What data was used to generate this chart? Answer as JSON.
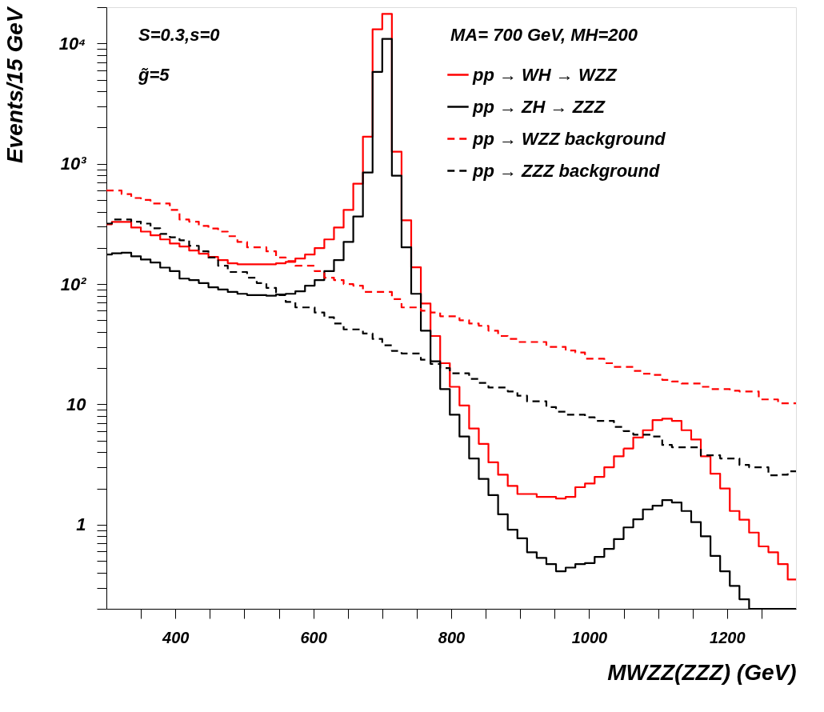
{
  "chart_data": {
    "type": "histogram",
    "xlabel": "MWZZ(ZZZ) (GeV)",
    "ylabel": "Events/15 GeV",
    "annotations": [
      "S=0.3,s=0",
      "g̃=5",
      "MA= 700 GeV, MH=200"
    ],
    "bins": [
      300,
      308,
      322,
      336,
      350,
      364,
      378,
      392,
      406,
      420,
      434,
      448,
      462,
      476,
      490,
      504,
      518,
      532,
      546,
      560,
      574,
      588,
      602,
      616,
      630,
      644,
      658,
      672,
      686,
      700,
      714,
      728,
      742,
      756,
      770,
      784,
      798,
      812,
      826,
      840,
      854,
      868,
      882,
      896,
      910,
      924,
      938,
      952,
      966,
      980,
      994,
      1008,
      1022,
      1036,
      1050,
      1064,
      1078,
      1092,
      1106,
      1120,
      1134,
      1148,
      1162,
      1176,
      1190,
      1204,
      1218,
      1232,
      1246,
      1260,
      1274,
      1288,
      1300
    ],
    "series": [
      {
        "name": "pp → WH → WZZ",
        "color": "#ff0000",
        "line_style": "solid",
        "values": [
          314,
          329,
          329,
          295,
          273,
          254,
          235,
          217,
          205,
          190,
          179,
          168,
          158,
          149,
          146,
          146,
          146,
          146,
          149,
          153,
          163,
          176,
          199,
          235,
          295,
          413,
          683,
          1680,
          13100,
          17600,
          1260,
          339,
          138,
          69,
          37,
          22,
          14,
          9.8,
          6.3,
          4.7,
          3.3,
          2.6,
          2.1,
          1.8,
          1.8,
          1.7,
          1.7,
          1.65,
          1.7,
          2.05,
          2.2,
          2.5,
          3.0,
          3.7,
          4.3,
          5.3,
          6.1,
          7.4,
          7.6,
          7.3,
          6.1,
          5.1,
          3.7,
          2.65,
          2.0,
          1.3,
          1.1,
          0.86,
          0.66,
          0.59,
          0.47,
          0.35
        ]
      },
      {
        "name": "pp → ZH → ZZZ",
        "color": "#000000",
        "line_style": "solid",
        "values": [
          176,
          180,
          182,
          170,
          160,
          151,
          137,
          128,
          111,
          108,
          102,
          94,
          90,
          86,
          83,
          81,
          81,
          80,
          82,
          83,
          87,
          97,
          108,
          128,
          158,
          224,
          364,
          845,
          5800,
          10900,
          795,
          202,
          83,
          41,
          22.8,
          13.4,
          8.2,
          5.4,
          3.55,
          2.4,
          1.76,
          1.22,
          0.91,
          0.77,
          0.59,
          0.53,
          0.47,
          0.41,
          0.44,
          0.47,
          0.48,
          0.54,
          0.63,
          0.76,
          0.95,
          1.11,
          1.34,
          1.44,
          1.6,
          1.53,
          1.3,
          1.05,
          0.8,
          0.55,
          0.41,
          0.31,
          0.24,
          0.2,
          0.2,
          0.2,
          0.2,
          0.2
        ]
      },
      {
        "name": "pp →  WZZ background",
        "color": "#ff0000",
        "line_style": "dashed",
        "values": [
          600,
          600,
          560,
          519,
          500,
          467,
          467,
          413,
          344,
          330,
          304,
          290,
          273,
          250,
          224,
          202,
          202,
          187,
          166,
          155,
          142,
          142,
          128,
          113,
          108,
          100,
          97,
          86,
          86,
          86,
          75,
          64,
          64,
          60,
          58,
          54,
          54,
          50,
          47,
          45,
          41,
          37,
          35,
          33,
          33,
          33,
          30,
          30,
          28,
          27,
          24,
          24,
          22,
          20.5,
          20.5,
          19,
          18,
          17.6,
          16,
          15.5,
          14.9,
          14.9,
          14,
          13.4,
          13.4,
          13,
          12.8,
          12.8,
          11,
          11,
          10.2,
          10.2
        ]
      },
      {
        "name": "pp →  ZZZ background",
        "color": "#000000",
        "line_style": "dashed",
        "values": [
          318,
          344,
          344,
          330,
          318,
          291,
          261,
          245,
          231,
          208,
          187,
          166,
          142,
          126,
          126,
          113,
          102,
          93,
          81,
          71,
          64,
          64,
          58,
          53,
          47,
          42,
          42,
          38.8,
          35,
          31,
          27.8,
          26.5,
          26.5,
          23.5,
          21.7,
          20,
          18.1,
          18.1,
          16.3,
          15.1,
          13.8,
          13.8,
          12.8,
          11.8,
          10.6,
          10.6,
          9.5,
          8.7,
          8.2,
          8.2,
          7.8,
          7.3,
          7.3,
          6.5,
          6.0,
          5.6,
          5.6,
          5.4,
          4.6,
          4.4,
          4.4,
          4.4,
          3.77,
          3.77,
          3.55,
          3.55,
          3.14,
          3.0,
          3.0,
          2.57,
          2.6,
          2.78
        ]
      }
    ],
    "xlim": [
      300,
      1300
    ],
    "xticks": [
      {
        "value": 350,
        "label": null
      },
      400,
      {
        "value": 450,
        "label": null
      },
      {
        "value": 500,
        "label": null
      },
      {
        "value": 550,
        "label": null
      },
      600,
      {
        "value": 650,
        "label": null
      },
      {
        "value": 700,
        "label": null
      },
      {
        "value": 750,
        "label": null
      },
      800,
      {
        "value": 850,
        "label": null
      },
      {
        "value": 900,
        "label": null
      },
      {
        "value": 950,
        "label": null
      },
      1000,
      {
        "value": 1050,
        "label": null
      },
      {
        "value": 1100,
        "label": null
      },
      {
        "value": 1150,
        "label": null
      },
      1200,
      {
        "value": 1250,
        "label": null
      }
    ],
    "ylim": [
      0.2,
      20000
    ],
    "yticks": [
      {
        "value": 0.2,
        "label": null
      },
      {
        "value": 0.3,
        "label": null
      },
      {
        "value": 0.4,
        "label": null
      },
      {
        "value": 0.5,
        "label": null
      },
      {
        "value": 0.6,
        "label": null
      },
      {
        "value": 0.7,
        "label": null
      },
      {
        "value": 0.8,
        "label": null
      },
      {
        "value": 0.9,
        "label": null
      },
      1,
      {
        "value": 2,
        "label": null
      },
      {
        "value": 3,
        "label": null
      },
      {
        "value": 4,
        "label": null
      },
      {
        "value": 5,
        "label": null
      },
      {
        "value": 6,
        "label": null
      },
      {
        "value": 7,
        "label": null
      },
      {
        "value": 8,
        "label": null
      },
      {
        "value": 9,
        "label": null
      },
      10,
      {
        "value": 20,
        "label": null
      },
      {
        "value": 30,
        "label": null
      },
      {
        "value": 40,
        "label": null
      },
      {
        "value": 50,
        "label": null
      },
      {
        "value": 60,
        "label": null
      },
      {
        "value": 70,
        "label": null
      },
      {
        "value": 80,
        "label": null
      },
      {
        "value": 90,
        "label": null
      },
      {
        "value": 100,
        "label": "10²"
      },
      {
        "value": 200,
        "label": null
      },
      {
        "value": 300,
        "label": null
      },
      {
        "value": 400,
        "label": null
      },
      {
        "value": 500,
        "label": null
      },
      {
        "value": 600,
        "label": null
      },
      {
        "value": 700,
        "label": null
      },
      {
        "value": 800,
        "label": null
      },
      {
        "value": 900,
        "label": null
      },
      {
        "value": 1000,
        "label": "10³"
      },
      {
        "value": 2000,
        "label": null
      },
      {
        "value": 3000,
        "label": null
      },
      {
        "value": 4000,
        "label": null
      },
      {
        "value": 5000,
        "label": null
      },
      {
        "value": 6000,
        "label": null
      },
      {
        "value": 7000,
        "label": null
      },
      {
        "value": 8000,
        "label": null
      },
      {
        "value": 9000,
        "label": null
      },
      {
        "value": 10000,
        "label": "10⁴"
      },
      {
        "value": 20000,
        "label": null
      }
    ],
    "log": "y",
    "grid": false,
    "legend": "top right"
  }
}
